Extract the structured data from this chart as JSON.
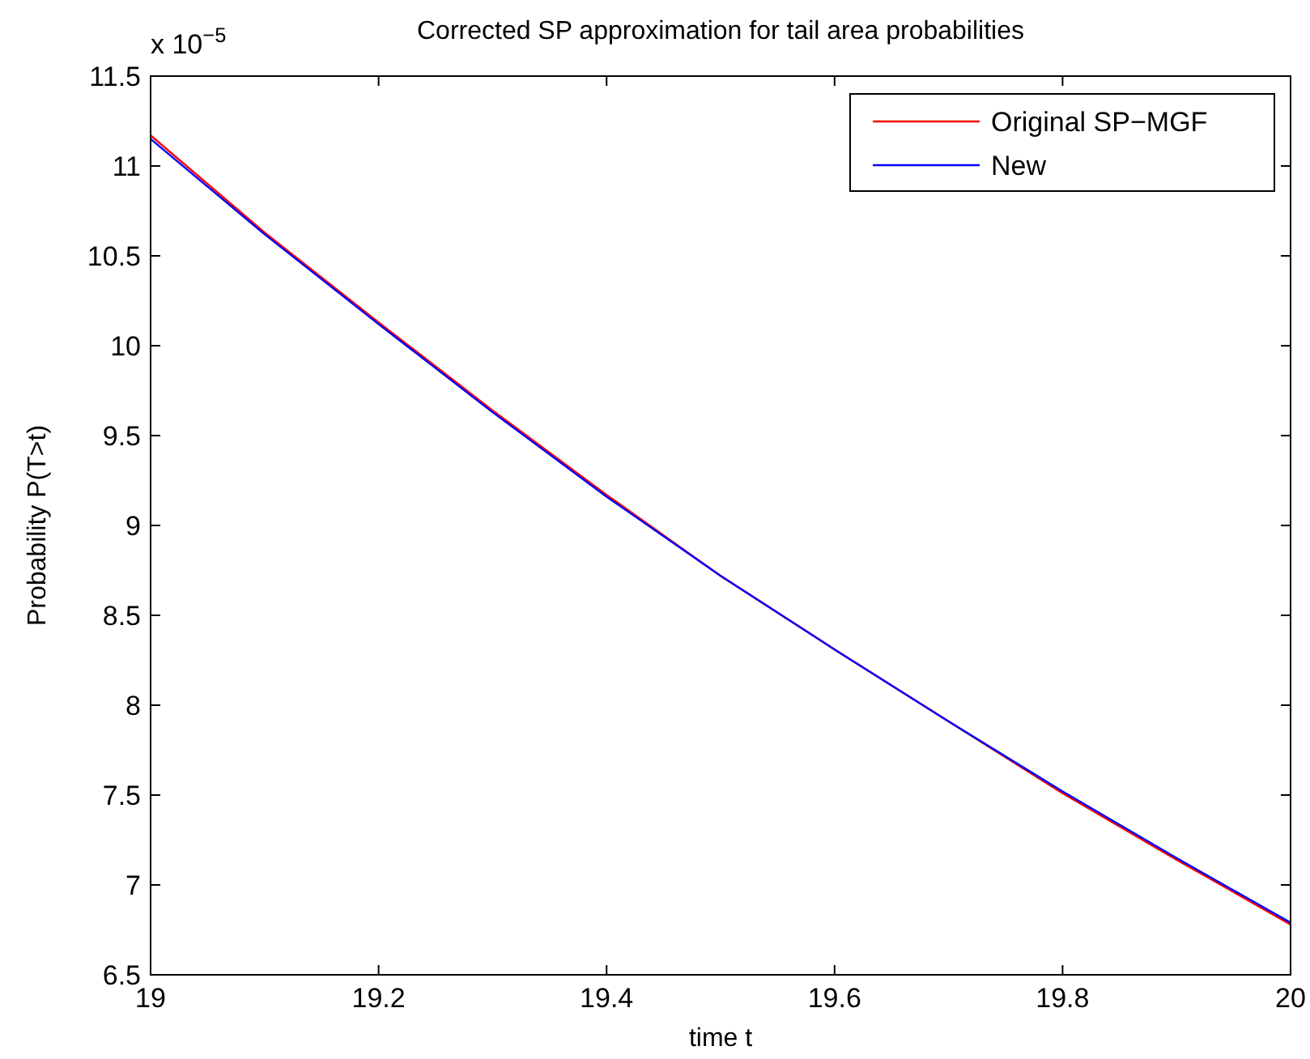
{
  "chart_data": {
    "type": "line",
    "title": "Corrected SP approximation for tail area probabilities",
    "xlabel": "time t",
    "ylabel": "Probability P(T>t)",
    "annotations": [
      "x 10$^{−5}$"
    ],
    "x": [
      19,
      19.1,
      19.2,
      19.3,
      19.4,
      19.5,
      19.6,
      19.7,
      19.8,
      19.9,
      20
    ],
    "series": [
      {
        "name": "Original SP−MGF",
        "color": "#ff0000",
        "values": [
          11.17,
          10.63,
          10.13,
          9.64,
          9.17,
          8.72,
          8.31,
          7.91,
          7.51,
          7.14,
          6.78
        ]
      },
      {
        "name": "New",
        "color": "#0000ff",
        "values": [
          11.15,
          10.62,
          10.12,
          9.63,
          9.16,
          8.72,
          8.31,
          7.91,
          7.52,
          7.15,
          6.79
        ]
      }
    ],
    "xlim": [
      19,
      20
    ],
    "xticks": [
      19,
      19.2,
      19.4,
      19.6,
      19.8,
      20
    ],
    "ylim": [
      6.5,
      11.5
    ],
    "yticks": [
      6.5,
      7,
      7.5,
      8,
      8.5,
      9,
      9.5,
      10,
      10.5,
      11,
      11.5
    ],
    "grid": false,
    "legend": "top right",
    "marker": "none",
    "line_style": "solid"
  }
}
